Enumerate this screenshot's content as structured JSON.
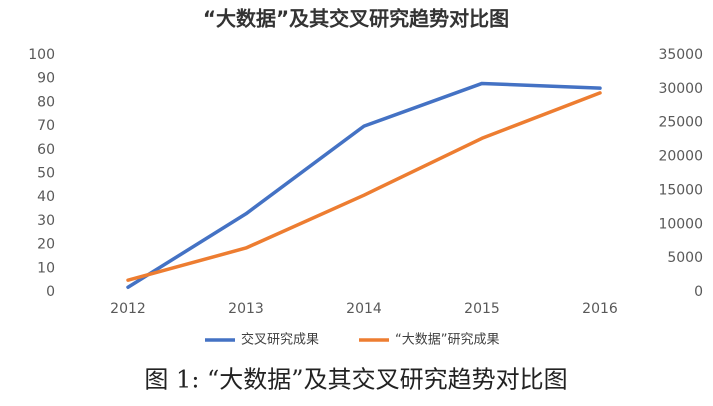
{
  "chart_data": {
    "type": "line",
    "title": "“大数据”及其交叉研究趋势对比图",
    "caption": "图 1: “大数据”及其交叉研究趋势对比图",
    "categories": [
      "2012",
      "2013",
      "2014",
      "2015",
      "2016"
    ],
    "series": [
      {
        "name": "交叉研究成果",
        "color": "#4472c4",
        "values": [
          2,
          33,
          70,
          88,
          86
        ]
      },
      {
        "name": "“大数据”研究成果",
        "color": "#ed7d31",
        "axis": "y2",
        "values": [
          1750,
          6500,
          14300,
          22700,
          29400
        ]
      }
    ],
    "ylim": [
      0,
      100
    ],
    "yticks": [
      0,
      10,
      20,
      30,
      40,
      50,
      60,
      70,
      80,
      90,
      100
    ],
    "y2lim": [
      0,
      35000
    ],
    "y2ticks": [
      0,
      5000,
      10000,
      15000,
      20000,
      25000,
      30000,
      35000
    ],
    "legend": "bottom"
  }
}
